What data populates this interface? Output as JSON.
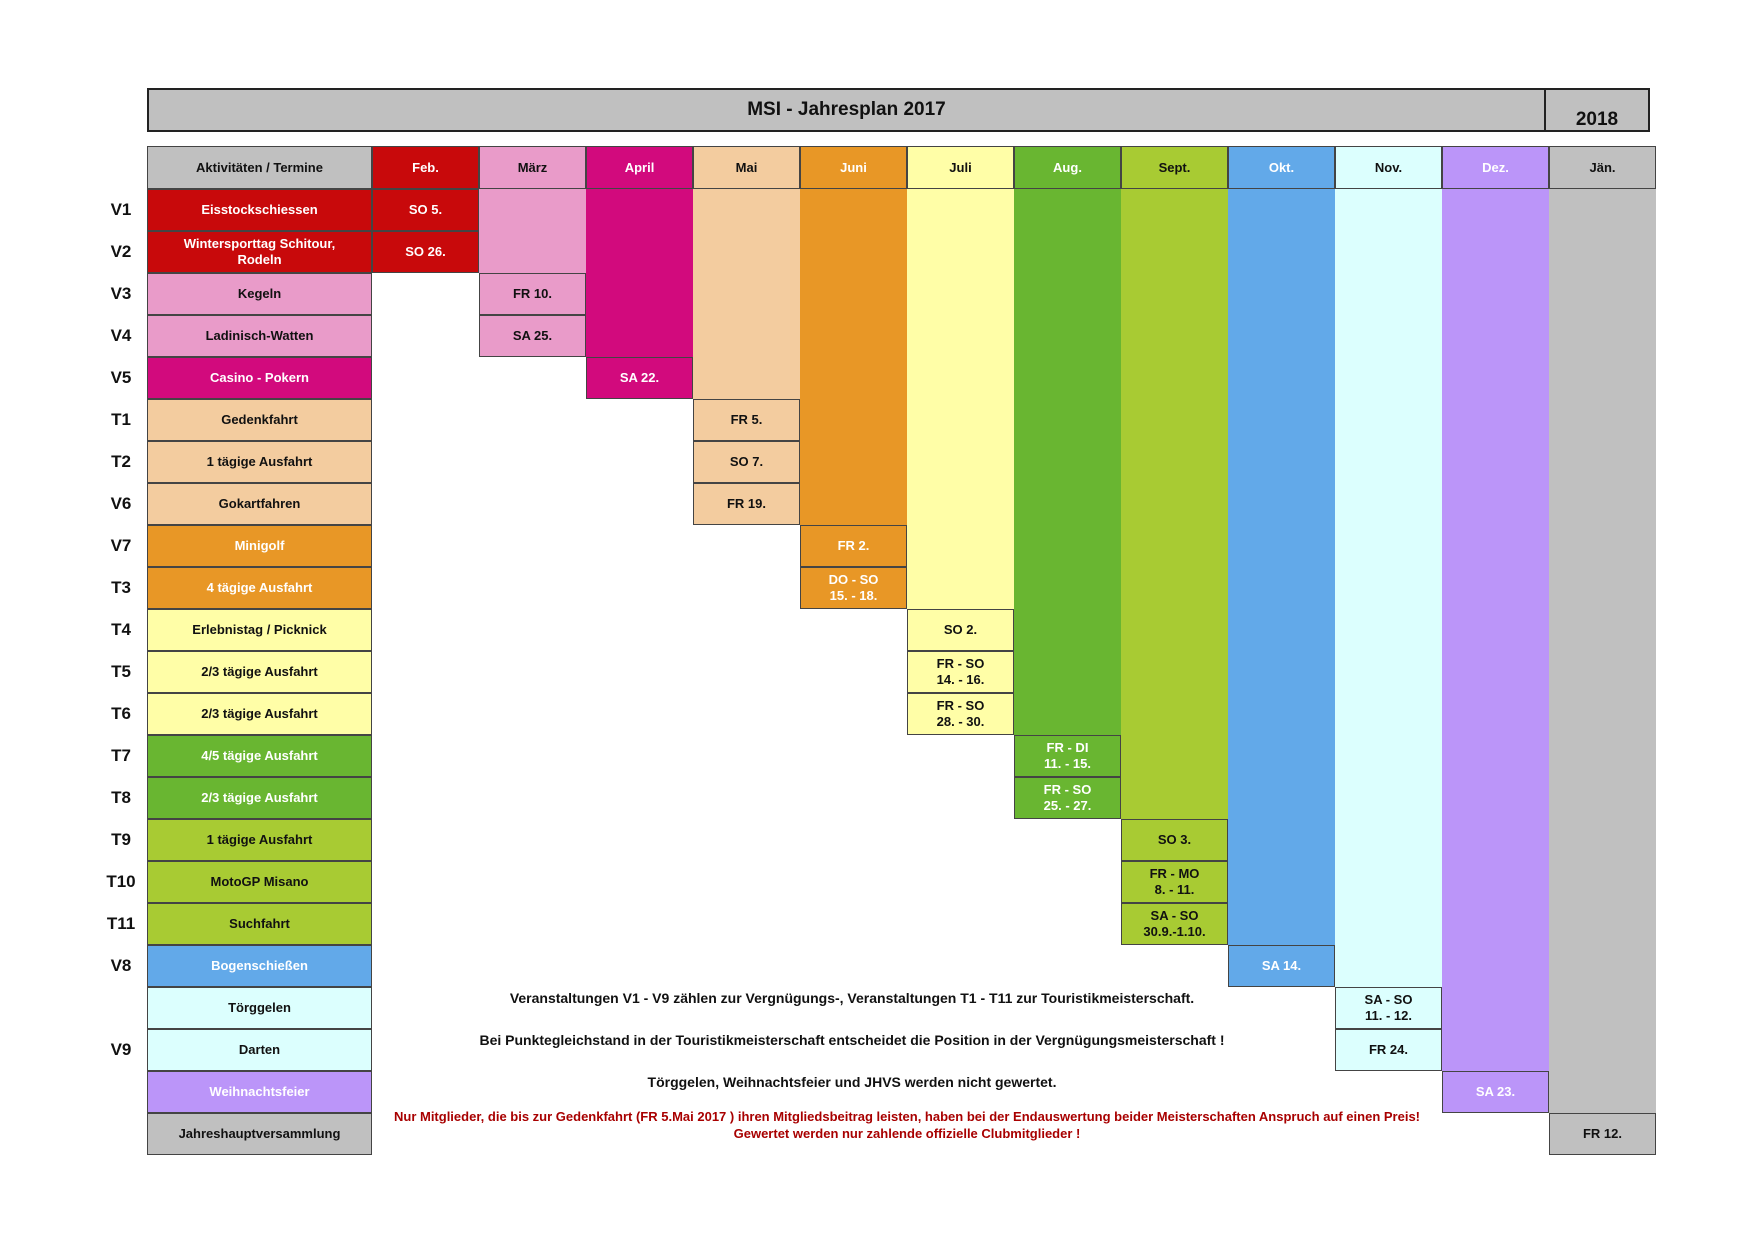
{
  "title": "MSI - Jahresplan 2017",
  "next_year": "2018",
  "header_label": "Aktivitäten  /  Termine",
  "months": [
    {
      "label": "Feb.",
      "color": "#c8090b",
      "text_color": "#ffffff"
    },
    {
      "label": "März",
      "color": "#e99bc9",
      "text_color": "#111111"
    },
    {
      "label": "April",
      "color": "#d20a7d",
      "text_color": "#ffffff"
    },
    {
      "label": "Mai",
      "color": "#f3cc9f",
      "text_color": "#111111"
    },
    {
      "label": "Juni",
      "color": "#e89726",
      "text_color": "#ffffff"
    },
    {
      "label": "Juli",
      "color": "#fffea7",
      "text_color": "#111111"
    },
    {
      "label": "Aug.",
      "color": "#69b631",
      "text_color": "#ffffff"
    },
    {
      "label": "Sept.",
      "color": "#a8cb33",
      "text_color": "#111111"
    },
    {
      "label": "Okt.",
      "color": "#62a9e9",
      "text_color": "#ffffff"
    },
    {
      "label": "Nov.",
      "color": "#dcfffe",
      "text_color": "#111111"
    },
    {
      "label": "Dez.",
      "color": "#bb95f9",
      "text_color": "#ffffff"
    },
    {
      "label": "Jän.",
      "color": "#c0c0c0",
      "text_color": "#111111"
    }
  ],
  "rows": [
    {
      "code": "V1",
      "activity": "Eisstockschiessen",
      "month": 0,
      "date": "SO 5."
    },
    {
      "code": "V2",
      "activity": "Wintersporttag      Schitour,\nRodeln",
      "month": 0,
      "date": "SO 26."
    },
    {
      "code": "V3",
      "activity": "Kegeln",
      "month": 1,
      "date": "FR 10."
    },
    {
      "code": "V4",
      "activity": "Ladinisch-Watten",
      "month": 1,
      "date": "SA 25."
    },
    {
      "code": "V5",
      "activity": "Casino - Pokern",
      "month": 2,
      "date": "SA 22."
    },
    {
      "code": "T1",
      "activity": "Gedenkfahrt",
      "month": 3,
      "date": "FR 5."
    },
    {
      "code": "T2",
      "activity": "1 tägige Ausfahrt",
      "month": 3,
      "date": "SO 7."
    },
    {
      "code": "V6",
      "activity": "Gokartfahren",
      "month": 3,
      "date": "FR 19."
    },
    {
      "code": "V7",
      "activity": "Minigolf",
      "month": 4,
      "date": "FR 2."
    },
    {
      "code": "T3",
      "activity": "4 tägige Ausfahrt",
      "month": 4,
      "date": "DO - SO\n15. - 18."
    },
    {
      "code": "T4",
      "activity": "Erlebnistag / Picknick",
      "month": 5,
      "date": "SO 2."
    },
    {
      "code": "T5",
      "activity": "2/3 tägige Ausfahrt",
      "month": 5,
      "date": "FR - SO\n14. - 16."
    },
    {
      "code": "T6",
      "activity": "2/3 tägige Ausfahrt",
      "month": 5,
      "date": "FR - SO\n28. - 30."
    },
    {
      "code": "T7",
      "activity": "4/5 tägige Ausfahrt",
      "month": 6,
      "date": "FR - DI\n11. - 15."
    },
    {
      "code": "T8",
      "activity": "2/3 tägige Ausfahrt",
      "month": 6,
      "date": "FR - SO\n25. - 27."
    },
    {
      "code": "T9",
      "activity": "1 tägige Ausfahrt",
      "month": 7,
      "date": "SO 3."
    },
    {
      "code": "T10",
      "activity": "MotoGP Misano",
      "month": 7,
      "date": "FR - MO\n8. - 11."
    },
    {
      "code": "T11",
      "activity": "Suchfahrt",
      "month": 7,
      "date": "SA - SO\n30.9.-1.10."
    },
    {
      "code": "V8",
      "activity": "Bogenschießen",
      "month": 8,
      "date": "SA 14."
    },
    {
      "code": "",
      "activity": "Törggelen",
      "month": 9,
      "date": "SA - SO\n11. - 12."
    },
    {
      "code": "V9",
      "activity": "Darten",
      "month": 9,
      "date": "FR 24."
    },
    {
      "code": "",
      "activity": "Weihnachtsfeier",
      "month": 10,
      "date": "SA 23."
    },
    {
      "code": "",
      "activity": "Jahreshauptversammlung",
      "month": 11,
      "date": "FR 12."
    }
  ],
  "notes": [
    "Veranstaltungen V1 - V9 zählen zur Vergnügungs-, Veranstaltungen T1 - T11 zur Touristikmeisterschaft.",
    "Bei Punktegleichstand in der Touristikmeisterschaft entscheidet die Position in der Vergnügungsmeisterschaft !",
    "Törggelen,  Weihnachtsfeier und JHVS werden nicht gewertet."
  ],
  "member_note": "Nur Mitglieder, die bis zur Gedenkfahrt (FR 5.Mai 2017 ) ihren Mitgliedsbeitrag leisten, haben bei der Endauswertung beider Meisterschaften Anspruch auf einen Preis!\nGewertet werden nur zahlende offizielle Clubmitglieder !"
}
